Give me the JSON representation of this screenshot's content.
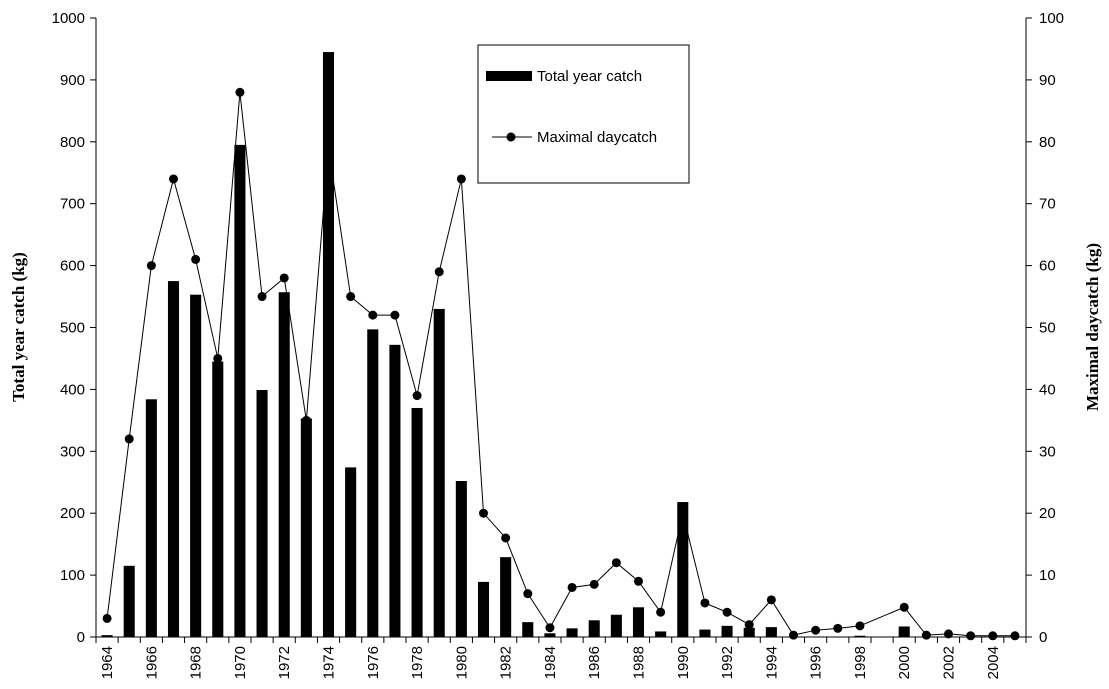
{
  "chart_data": {
    "type": "bar",
    "title": "",
    "xlabel": "",
    "ylabel": "Total year catch (kg)",
    "y2label": "Maximal daycatch (kg)",
    "ylim": [
      0,
      1000
    ],
    "y2lim": [
      0,
      100
    ],
    "grid": false,
    "legend_position": "top-center",
    "categories": [
      "1964",
      "1965",
      "1966",
      "1967",
      "1968",
      "1969",
      "1970",
      "1971",
      "1972",
      "1973",
      "1974",
      "1975",
      "1976",
      "1977",
      "1978",
      "1979",
      "1980",
      "1981",
      "1982",
      "1983",
      "1984",
      "1985",
      "1986",
      "1987",
      "1988",
      "1989",
      "1990",
      "1991",
      "1992",
      "1993",
      "1994",
      "1995",
      "1996",
      "1997",
      "1998",
      "1999",
      "2000",
      "2001",
      "2002",
      "2003",
      "2004",
      "2005"
    ],
    "x_tick_labels": [
      "1964",
      "",
      "1966",
      "",
      "1968",
      "",
      "1970",
      "",
      "1972",
      "",
      "1974",
      "",
      "1976",
      "",
      "1978",
      "",
      "1980",
      "",
      "1982",
      "",
      "1984",
      "",
      "1986",
      "",
      "1988",
      "",
      "1990",
      "",
      "1992",
      "",
      "1994",
      "",
      "1996",
      "",
      "1998",
      "",
      "2000",
      "",
      "2002",
      "",
      "2004",
      ""
    ],
    "series": [
      {
        "name": "Total year catch",
        "type": "bar",
        "axis": "left",
        "values": [
          3,
          115,
          384,
          575,
          553,
          445,
          795,
          399,
          557,
          353,
          945,
          274,
          497,
          472,
          370,
          530,
          252,
          89,
          129,
          24,
          6,
          14,
          27,
          36,
          48,
          9,
          218,
          12,
          18,
          15,
          16,
          0,
          0,
          0,
          2,
          0,
          17,
          0,
          0,
          0,
          0,
          0
        ]
      },
      {
        "name": "Maximal daycatch",
        "type": "line",
        "axis": "right",
        "values": [
          3,
          32,
          60,
          74,
          61,
          45,
          88,
          55,
          58,
          35,
          79,
          55,
          52,
          52,
          39,
          59,
          74,
          20,
          16,
          7,
          1.5,
          8,
          8.5,
          12,
          9,
          4,
          20,
          5.5,
          4,
          2,
          6,
          0.3,
          1.1,
          1.4,
          1.8,
          null,
          4.8,
          0.3,
          0.5,
          0.2,
          0.2,
          0.2
        ]
      }
    ]
  }
}
